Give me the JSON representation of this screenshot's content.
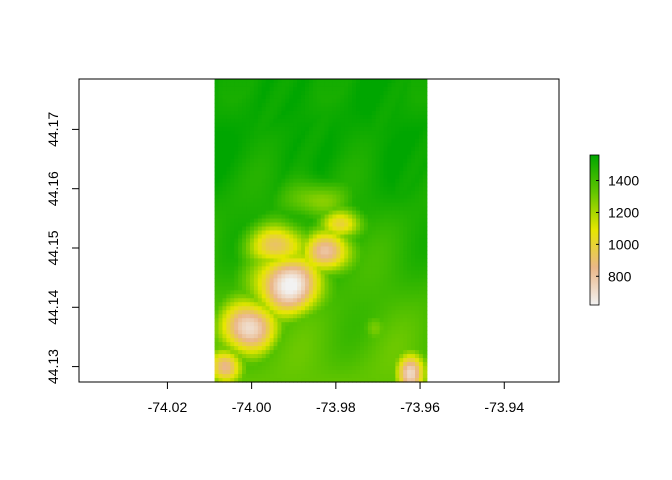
{
  "chart_data": {
    "type": "heatmap",
    "title": "",
    "xlabel": "",
    "ylabel": "",
    "xlim": [
      -74.041,
      -73.927
    ],
    "ylim": [
      44.1274,
      44.1785
    ],
    "raster_extent": {
      "xmin": -74.0088,
      "xmax": -73.9584,
      "ymin": 44.1274,
      "ymax": 44.1785
    },
    "x_ticks": [
      -74.02,
      -74.0,
      -73.98,
      -73.96,
      -73.94
    ],
    "x_tick_labels": [
      "-74.02",
      "-74.00",
      "-73.98",
      "-73.96",
      "-73.94"
    ],
    "y_ticks": [
      44.13,
      44.14,
      44.15,
      44.16,
      44.17
    ],
    "y_tick_labels": [
      "44.13",
      "44.14",
      "44.15",
      "44.16",
      "44.17"
    ],
    "value_range": [
      620,
      1560
    ],
    "legend": {
      "placement": "right",
      "ticks": [
        800,
        1000,
        1200,
        1400
      ],
      "tick_labels": [
        "800",
        "1000",
        "1200",
        "1400"
      ],
      "colors": [
        "#f2f2f2",
        "#eab788",
        "#e6e600",
        "#63c600",
        "#00a600"
      ]
    }
  }
}
